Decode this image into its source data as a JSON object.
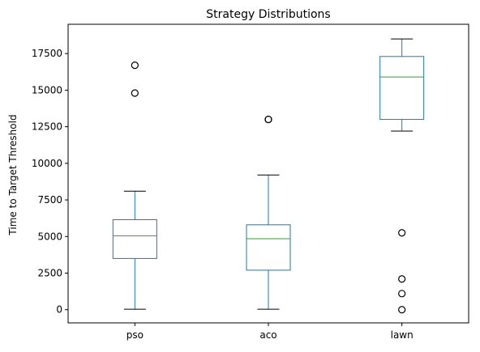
{
  "chart_data": {
    "type": "box",
    "title": "Strategy Distributions",
    "xlabel": "",
    "ylabel": "Time to Target Threshold",
    "ylim": [
      -900,
      19500
    ],
    "yticks": [
      0,
      2500,
      5000,
      7500,
      10000,
      12500,
      15000,
      17500
    ],
    "ytick_labels": [
      "0",
      "2500",
      "5000",
      "7500",
      "10000",
      "12500",
      "15000",
      "17500"
    ],
    "grid": false,
    "categories": [
      "pso",
      "aco",
      "lawn"
    ],
    "series": [
      {
        "whisker_low": 30,
        "q1": 3500,
        "median": 5050,
        "q3": 6150,
        "whisker_high": 8100,
        "outliers": [
          14800,
          16700
        ]
      },
      {
        "whisker_low": 30,
        "q1": 2700,
        "median": 4850,
        "q3": 5800,
        "whisker_high": 9200,
        "outliers": [
          13000,
          13000
        ]
      },
      {
        "whisker_low": 12200,
        "q1": 13000,
        "median": 15900,
        "q3": 17300,
        "whisker_high": 18500,
        "outliers": [
          0,
          1100,
          2100,
          5250
        ]
      }
    ],
    "colors": {
      "box": "#1f77b4",
      "median": "#2ca02c",
      "whisker": "#1f77b4",
      "cap": "#000000",
      "outlier": "#000000"
    }
  }
}
